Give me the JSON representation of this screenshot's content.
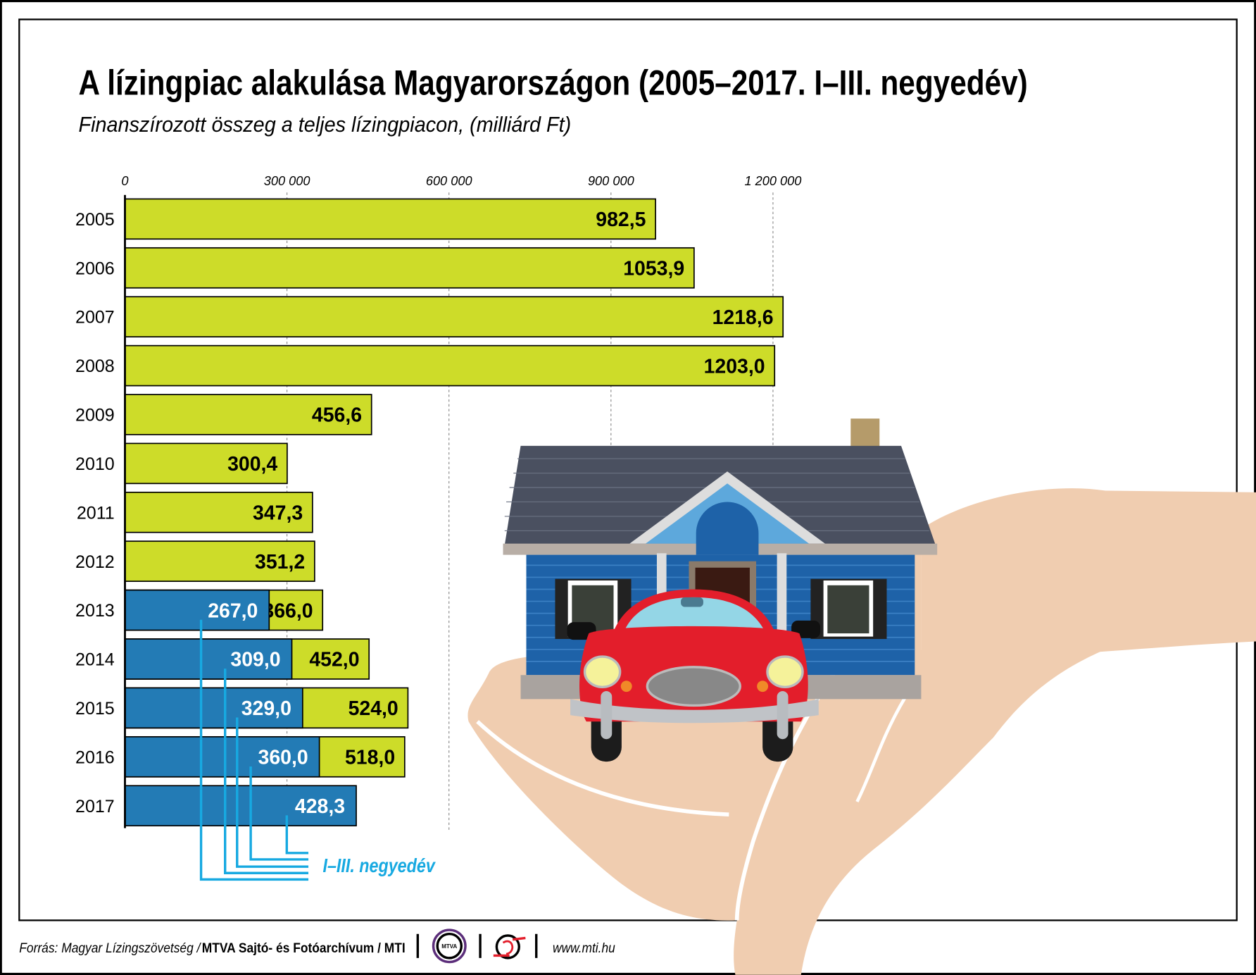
{
  "title": "A lízingpiac alakulása Magyarországon (2005–2017. I–III. negyedév)",
  "subtitle": "Finanszírozott összeg a teljes lízingpiacon, (milliárd Ft)",
  "legend_note": "I–III. negyedév",
  "footer": {
    "source_prefix": "Forrás: Magyar Lízingszövetség / ",
    "source_bold": "MTVA Sajtó- és Fotóarchívum / MTI",
    "logo1_text": "MTVA",
    "url": "www.mti.hu"
  },
  "colors": {
    "total": "#cddc29",
    "q1_q3": "#237bb5",
    "note": "#17a9e1",
    "hand": "#f0cdb0"
  },
  "chart_data": {
    "type": "bar",
    "orientation": "horizontal",
    "stacked_overlay": true,
    "title": "A lízingpiac alakulása Magyarországon (2005–2017. I–III. negyedév)",
    "subtitle": "Finanszírozott összeg a teljes lízingpiacon, (milliárd Ft)",
    "xlim": [
      0,
      1200000
    ],
    "x_ticks": [
      0,
      300000,
      600000,
      900000,
      1200000
    ],
    "x_tick_labels": [
      "0",
      "300 000",
      "600 000",
      "900 000",
      "1 200 000"
    ],
    "grid": "vertical dashed",
    "categories": [
      "2005",
      "2006",
      "2007",
      "2008",
      "2009",
      "2010",
      "2011",
      "2012",
      "2013",
      "2014",
      "2015",
      "2016",
      "2017"
    ],
    "series": [
      {
        "values": [
          982.5,
          1053.9,
          1218.6,
          1203.0,
          456.6,
          300.4,
          347.3,
          351.2,
          366.0,
          452.0,
          524.0,
          518.0,
          null
        ],
        "labels": [
          "982,5",
          "1053,9",
          "1218,6",
          "1203,0",
          "456,6",
          "300,4",
          "347,3",
          "351,2",
          "366,0",
          "452,0",
          "524,0",
          "518,0",
          null
        ],
        "color": "#cddc29"
      },
      {
        "name": "I–III. negyedév",
        "values": [
          null,
          null,
          null,
          null,
          null,
          null,
          null,
          null,
          267.0,
          309.0,
          329.0,
          360.0,
          428.3
        ],
        "labels": [
          null,
          null,
          null,
          null,
          null,
          null,
          null,
          null,
          "267,0",
          "309,0",
          "329,0",
          "360,0",
          "428,3"
        ],
        "color": "#237bb5"
      }
    ]
  }
}
